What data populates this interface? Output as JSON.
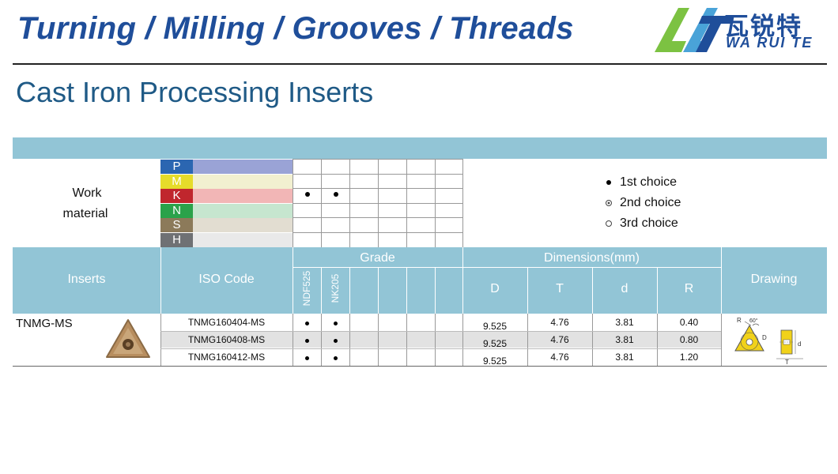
{
  "header": {
    "banner_title": "Turning / Milling / Grooves / Threads",
    "logo_cn": "瓦锐特",
    "logo_en": "WA RUI TE"
  },
  "page_title": "Cast Iron Processing Inserts",
  "work_material": {
    "label_line1": "Work",
    "label_line2": "material",
    "materials": [
      {
        "code": "P",
        "color": "#2b66b1",
        "bar_color": "#9aa3d6"
      },
      {
        "code": "M",
        "color": "#e6dc2a",
        "bar_color": "#f2f0d0"
      },
      {
        "code": "K",
        "color": "#c0262d",
        "bar_color": "#f2b6b6"
      },
      {
        "code": "N",
        "color": "#2aa24a",
        "bar_color": "#c6e6cf"
      },
      {
        "code": "S",
        "color": "#8c7a5a",
        "bar_color": "#e2ddd1"
      },
      {
        "code": "H",
        "color": "#6f7174",
        "bar_color": "#e9e9e9"
      }
    ]
  },
  "legend": {
    "first": "1st choice",
    "second": "2nd choice",
    "third": "3rd choice"
  },
  "table": {
    "headers": {
      "inserts": "Inserts",
      "iso_code": "ISO Code",
      "grade": "Grade",
      "dimensions": "Dimensions(mm)",
      "drawing": "Drawing"
    },
    "grades": [
      "NDF525",
      "NK205"
    ],
    "dim_columns": [
      "D",
      "T",
      "d",
      "R"
    ],
    "insert_name": "TNMG-MS",
    "rows": [
      {
        "iso": "TNMG160404-MS",
        "D": "9.525",
        "T": "4.76",
        "d": "3.81",
        "R": "0.40"
      },
      {
        "iso": "TNMG160408-MS",
        "D": "9.525",
        "T": "4.76",
        "d": "3.81",
        "R": "0.80"
      },
      {
        "iso": "TNMG160412-MS",
        "D": "9.525",
        "T": "4.76",
        "d": "3.81",
        "R": "1.20"
      }
    ]
  },
  "drawing_labels": {
    "R": "R",
    "angle": "60°",
    "D": "D",
    "d": "d",
    "T": "T"
  }
}
